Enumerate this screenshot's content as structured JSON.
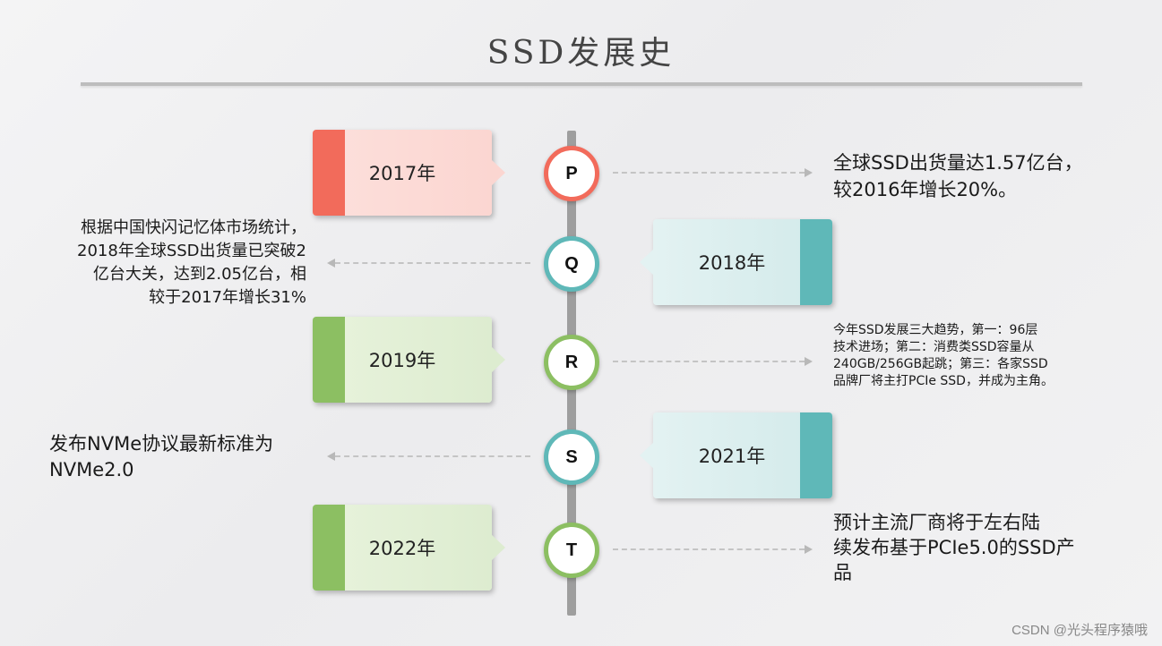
{
  "title": "SSD发展史",
  "colors": {
    "red": "#f26b5b",
    "teal": "#5fb8b8",
    "green": "#8cbf62"
  },
  "milestones": [
    {
      "letter": "P",
      "year": "2017年",
      "description": "全球SSD出货量达1.57亿台，\n较2016年增长20%。"
    },
    {
      "letter": "Q",
      "year": "2018年",
      "description": "根据中国快闪记忆体市场统计，\n2018年全球SSD出货量已突破2\n亿台大关，达到2.05亿台，相\n较于2017年增长31%"
    },
    {
      "letter": "R",
      "year": "2019年",
      "description": "今年SSD发展三大趋势，第一：96层\n技术进场；第二：消费类SSD容量从\n240GB/256GB起跳；第三：各家SSD\n品牌厂将主打PCIe SSD，并成为主角。"
    },
    {
      "letter": "S",
      "year": "2021年",
      "description": "发布NVMe协议最新标准为\nNVMe2.0"
    },
    {
      "letter": "T",
      "year": "2022年",
      "description": "预计主流厂商将于左右陆\n续发布基于PCIe5.0的SSD产\n品"
    }
  ],
  "watermark": "CSDN @光头程序猿哦"
}
